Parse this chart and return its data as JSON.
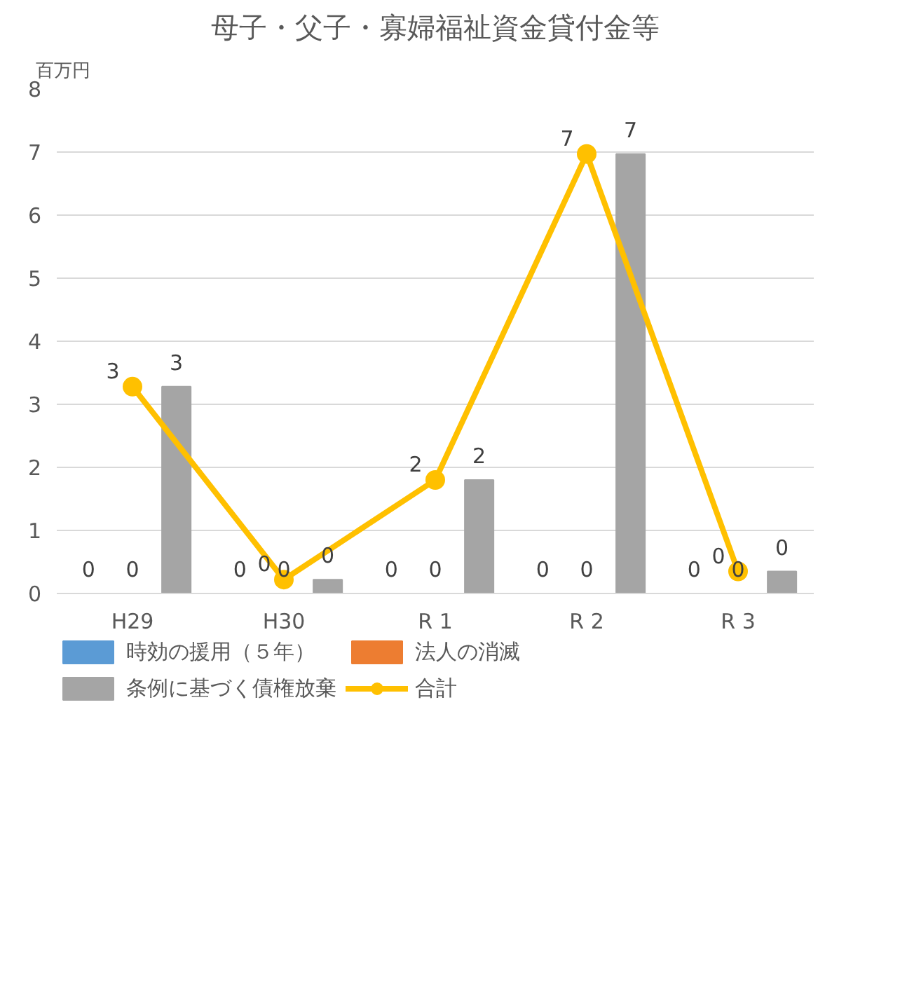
{
  "chart_data": {
    "type": "bar",
    "title": "母子・父子・寡婦福祉資金貸付金等",
    "ylabel": "百万円",
    "categories": [
      "H29",
      "H30",
      "R 1",
      "R 2",
      "R 3"
    ],
    "series": [
      {
        "name": "時効の援用（５年）",
        "color": "#5b9bd5",
        "values": [
          0,
          0,
          0,
          0,
          0
        ],
        "value_labels": [
          "0",
          "0",
          "0",
          "0",
          "0"
        ]
      },
      {
        "name": "法人の消滅",
        "color": "#ed7d31",
        "values": [
          0,
          0,
          0,
          0,
          0
        ],
        "value_labels": [
          "0",
          "0",
          "0",
          "0",
          "0"
        ]
      },
      {
        "name": "条例に基づく債権放棄",
        "color": "#a5a5a5",
        "values": [
          3.28,
          0.22,
          1.8,
          6.97,
          0.35
        ],
        "value_labels": [
          "3",
          "0",
          "2",
          "7",
          "0"
        ]
      },
      {
        "name": "合計",
        "type": "line",
        "marker": "circle",
        "color": "#ffc000",
        "values": [
          3.28,
          0.22,
          1.8,
          6.97,
          0.35
        ],
        "value_labels": [
          "3",
          "0",
          "2",
          "7",
          "0"
        ]
      }
    ],
    "ylim": [
      0,
      8
    ],
    "yticks": [
      0,
      1,
      2,
      3,
      4,
      5,
      6,
      7,
      8
    ],
    "grid": "y",
    "legend": "bottom"
  }
}
